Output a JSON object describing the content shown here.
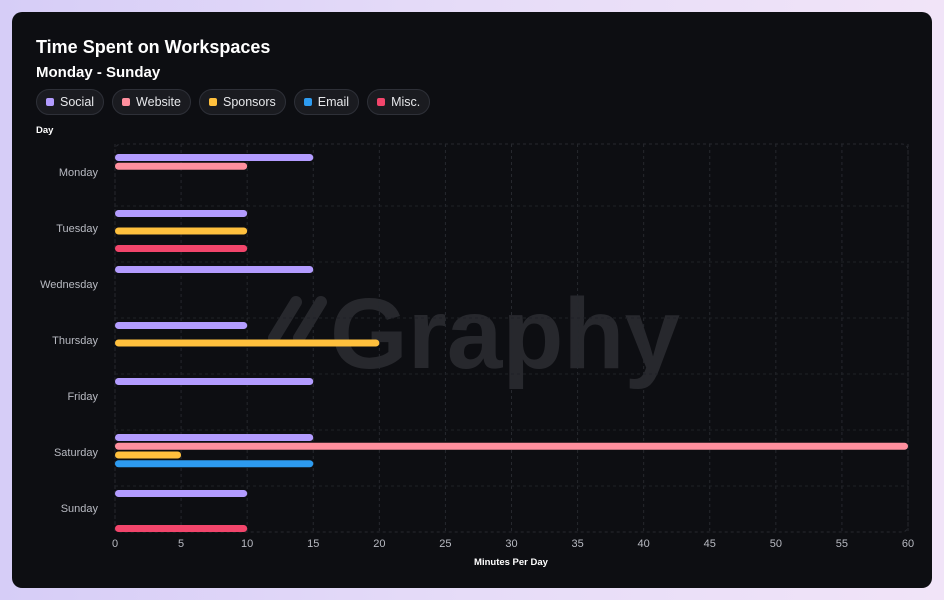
{
  "header": {
    "title": "Time Spent on Workspaces",
    "subtitle": "Monday - Sunday"
  },
  "watermark": "Graphy",
  "chart_data": {
    "type": "bar",
    "orientation": "horizontal",
    "title": "Time Spent on Workspaces",
    "subtitle": "Monday - Sunday",
    "xlabel": "Minutes Per Day",
    "ylabel": "Day",
    "xlim": [
      0,
      60
    ],
    "xticks": [
      0,
      5,
      10,
      15,
      20,
      25,
      30,
      35,
      40,
      45,
      50,
      55,
      60
    ],
    "grid": true,
    "legend_position": "top-left",
    "categories": [
      "Monday",
      "Tuesday",
      "Wednesday",
      "Thursday",
      "Friday",
      "Saturday",
      "Sunday"
    ],
    "series": [
      {
        "name": "Social",
        "color": "#b39cff",
        "values": [
          15,
          10,
          15,
          10,
          15,
          15,
          10
        ]
      },
      {
        "name": "Website",
        "color": "#ff8f9e",
        "values": [
          10,
          0,
          0,
          0,
          0,
          60,
          0
        ]
      },
      {
        "name": "Sponsors",
        "color": "#ffc03d",
        "values": [
          0,
          10,
          0,
          20,
          0,
          5,
          0
        ]
      },
      {
        "name": "Email",
        "color": "#2d9bf0",
        "values": [
          0,
          0,
          0,
          0,
          0,
          15,
          0
        ]
      },
      {
        "name": "Misc.",
        "color": "#f2456b",
        "values": [
          0,
          10,
          0,
          0,
          0,
          0,
          10
        ]
      }
    ]
  }
}
